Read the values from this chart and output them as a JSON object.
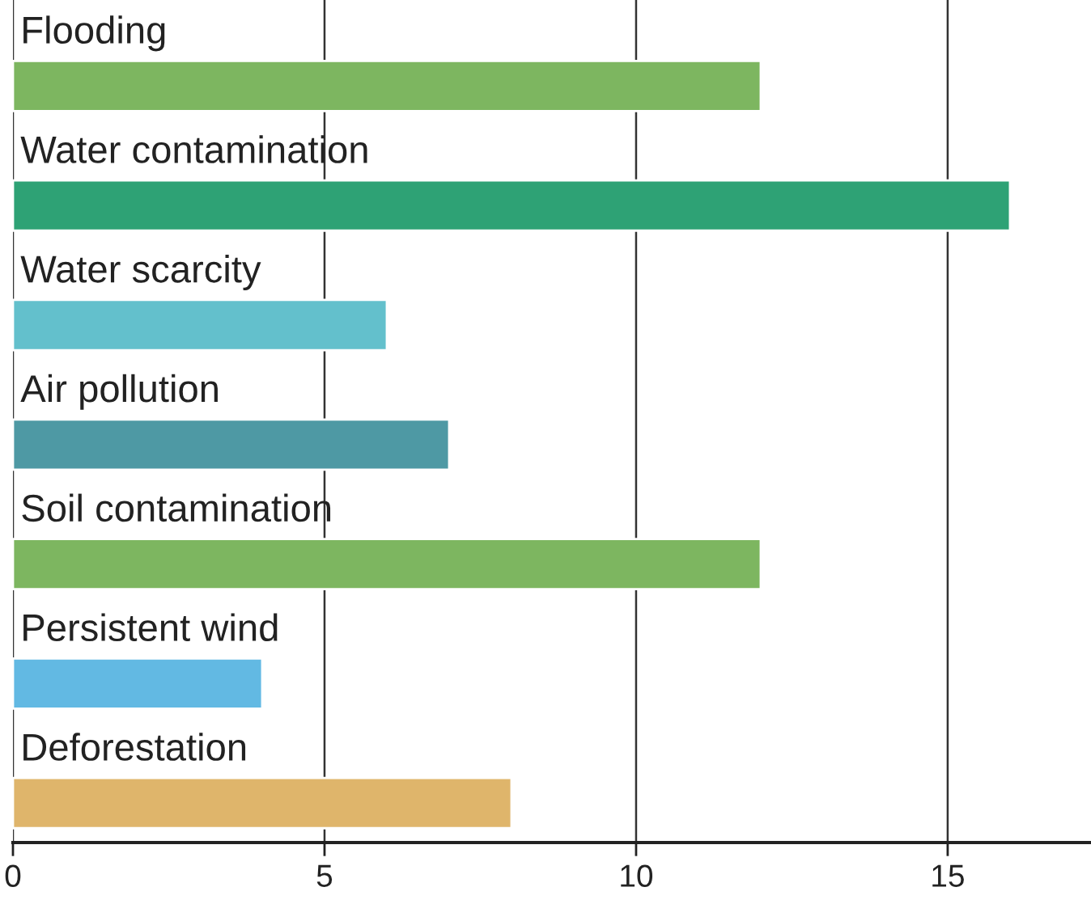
{
  "chart_data": {
    "type": "bar",
    "orientation": "horizontal",
    "categories": [
      "Flooding",
      "Water contamination",
      "Water scarcity",
      "Air pollution",
      "Soil contamination",
      "Persistent wind",
      "Deforestation"
    ],
    "values": [
      12,
      16,
      6,
      7,
      12,
      4,
      8
    ],
    "colors": [
      "#7db660",
      "#2ea275",
      "#63c0cc",
      "#4e99a4",
      "#7db660",
      "#62b9e3",
      "#dfb56b"
    ],
    "xlim": [
      0,
      17.3
    ],
    "xticks": [
      0,
      5,
      10,
      15
    ],
    "grid": "x",
    "legend": false
  }
}
